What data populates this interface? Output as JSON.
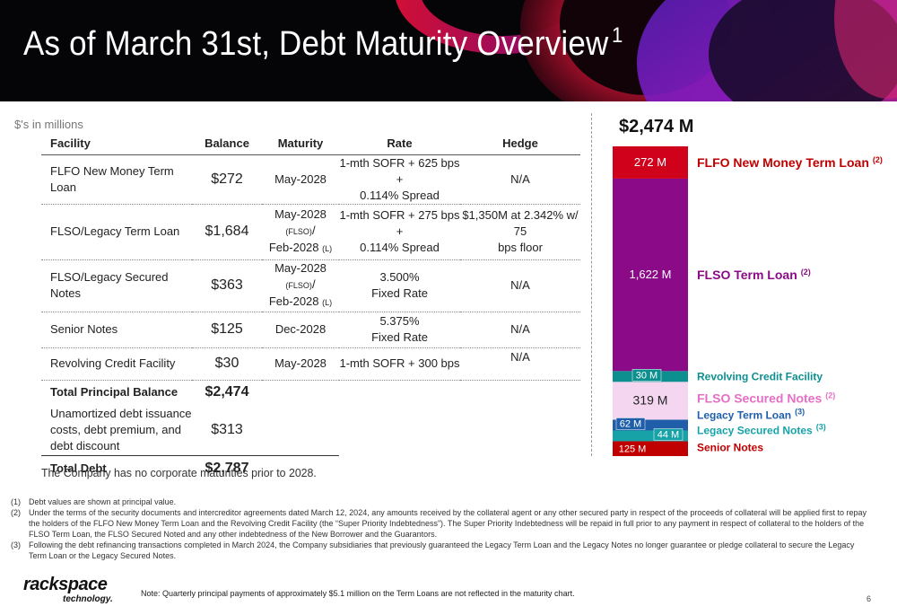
{
  "title": "As of March 31st, Debt Maturity Overview",
  "title_superscript": "1",
  "units_note": "$'s in millions",
  "table": {
    "headers": {
      "facility": "Facility",
      "balance": "Balance",
      "maturity": "Maturity",
      "rate": "Rate",
      "hedge": "Hedge"
    },
    "rows": [
      {
        "facility": "FLFO New Money Term Loan",
        "balance": "$272",
        "maturity": "May-2028",
        "rate_line1": "1-mth SOFR + 625 bps +",
        "rate_line2": "0.114% Spread",
        "hedge_line1": "N/A",
        "hedge_line2": ""
      },
      {
        "facility": "FLSO/Legacy Term Loan",
        "balance": "$1,684",
        "maturity_line1": "May-2028",
        "maturity_tag1": "(FLSO)",
        "maturity_sep": "/",
        "maturity_line3": "Feb-2028",
        "maturity_tag2": "(L)",
        "rate_line1": "1-mth SOFR + 275 bps +",
        "rate_line2": "0.114% Spread",
        "hedge_line1": "$1,350M at 2.342% w/ 75",
        "hedge_line2": "bps floor"
      },
      {
        "facility": "FLSO/Legacy Secured Notes",
        "balance": "$363",
        "maturity_line1": "May-2028",
        "maturity_tag1": "(FLSO)",
        "maturity_sep": "/",
        "maturity_line3": "Feb-2028",
        "maturity_tag2": "(L)",
        "rate_line1": "3.500%",
        "rate_line2": "Fixed Rate",
        "hedge_line1": "N/A",
        "hedge_line2": ""
      },
      {
        "facility": "Senior Notes",
        "balance": "$125",
        "maturity": "Dec-2028",
        "rate_line1": "5.375%",
        "rate_line2": "Fixed Rate",
        "hedge_line1": "N/A",
        "hedge_line2": ""
      },
      {
        "facility": "Revolving Credit Facility",
        "balance": "$30",
        "maturity": "May-2028",
        "rate_line1": "1-mth SOFR + 300 bps",
        "rate_line2": "",
        "hedge_line1": "N/A",
        "hedge_line2": ""
      }
    ],
    "total_principal": {
      "label": "Total Principal Balance",
      "value": "$2,474"
    },
    "unamortized": {
      "line1": "Unamortized debt issuance",
      "line2": "costs, debt premium, and",
      "line3": "debt discount",
      "value": "$313"
    },
    "total_debt": {
      "label": "Total Debt",
      "value": "$2,787"
    }
  },
  "no_maturities_note": "The Company has no corporate maturities prior to 2028.",
  "chart_data": {
    "type": "bar",
    "stacked": true,
    "title": "$2,474 M",
    "categories": [
      ""
    ],
    "segments": [
      {
        "name": "Senior Notes",
        "value": 125,
        "value_label": "125 M",
        "color": "#c00000",
        "label_color": "#c00000"
      },
      {
        "name": "Legacy Secured Notes",
        "superscript": "(3)",
        "value": 44,
        "value_label": "44 M",
        "color": "#17a2a8",
        "label_color": "#17a2a8"
      },
      {
        "name": "Legacy Term Loan",
        "superscript": "(3)",
        "value": 62,
        "value_label": "62 M",
        "color": "#1f5faa",
        "label_color": "#1f5faa"
      },
      {
        "name": "FLSO Secured Notes",
        "superscript": "(2)",
        "value": 319,
        "value_label": "319 M",
        "color": "#f4d6f0",
        "label_color": "#e56fc6"
      },
      {
        "name": "Revolving Credit Facility",
        "value": 30,
        "value_label": "30 M",
        "color": "#0e8f8f",
        "label_color": "#0e8f8f"
      },
      {
        "name": "FLSO Term Loan",
        "superscript": "(2)",
        "value": 1622,
        "value_label": "1,622 M",
        "color": "#8b0a87",
        "label_color": "#8b0a87"
      },
      {
        "name": "FLFO New Money Term Loan",
        "superscript": "(2)",
        "value": 272,
        "value_label": "272 M",
        "color": "#d0021b",
        "label_color": "#c00000"
      }
    ]
  },
  "footnotes": [
    {
      "num": "(1)",
      "text": "Debt values are shown at principal value."
    },
    {
      "num": "(2)",
      "text": "Under the terms of the security documents and intercreditor agreements dated March 12, 2024, any amounts received by the collateral agent or any other secured party in respect of the proceeds of collateral will be applied first to repay the holders of the FLFO New Money Term Loan and the Revolving Credit Facility (the “Super Priority Indebtedness”). The Super Priority Indebtedness will be repaid in full prior to any payment in respect of collateral to the holders of the FLSO Term Loan, the FLSO Secured Noted and any other indebtedness of the New Borrower and the Guarantors."
    },
    {
      "num": "(3)",
      "text": "Following the debt refinancing transactions completed in March 2024, the Company subsidiaries that previously guaranteed the Legacy Term Loan and the Legacy Notes no longer guarantee or pledge collateral to secure the Legacy Term Loan or the Legacy Secured Notes."
    }
  ],
  "logo": {
    "wordmark": "rackspace",
    "sub": "technology."
  },
  "bottom_note": "Note: Quarterly principal payments of approximately $5.1 million on the Term Loans are not reflected in the maturity chart.",
  "page_number": "6"
}
